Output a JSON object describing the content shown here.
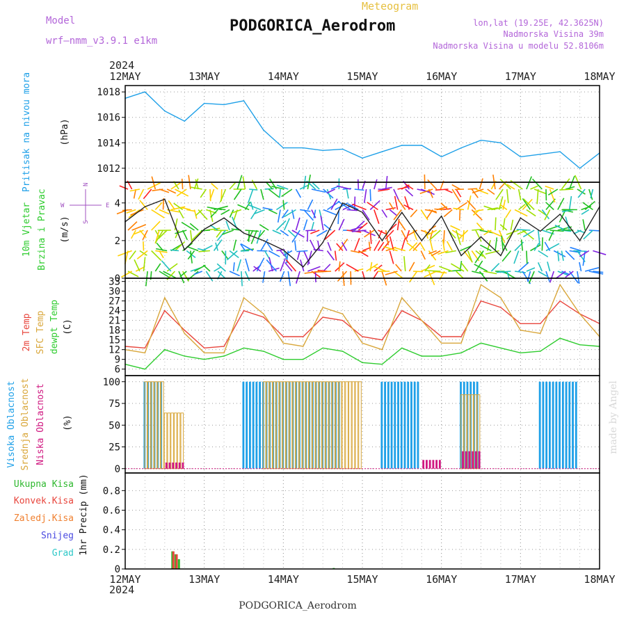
{
  "header": {
    "model_label": "Model",
    "model_name": "wrf–nmm_v3.9.1 e1km",
    "product": "Meteogram",
    "station": "PODGORICA_Aerodrom",
    "lonlat": "lon,lat (19.25E, 42.3625N)",
    "elevation": "Nadmorska Visina 39m",
    "model_elevation": "Nadmorska Visina u modelu 52.8106m",
    "credit": "made by Angel",
    "footer_station": "PODGORICA_Aerodrom"
  },
  "colors": {
    "pressure": "#1ea0e8",
    "temp2m": "#e8453c",
    "sfc_temp": "#d9a73b",
    "dewpoint": "#2ecc2e",
    "high_cloud": "#1ea0e8",
    "mid_cloud": "#d9a73b",
    "low_cloud": "#d01880",
    "total_precip": "#2eb82e",
    "conv_precip": "#e8453c",
    "frozen_precip": "#f08030",
    "snow": "#4a4ae0",
    "graupel": "#2ec8c8",
    "model_text": "#b366d9",
    "product_text": "#e6b800",
    "credit_text": "#d8d8d8"
  },
  "chart_data": [
    {
      "type": "line",
      "panel": "pressure",
      "x_type": "date",
      "x": [
        "2024-05-12 00:00",
        "2024-05-12 06:00",
        "2024-05-12 12:00",
        "2024-05-12 18:00",
        "2024-05-13 00:00",
        "2024-05-13 06:00",
        "2024-05-13 12:00",
        "2024-05-13 18:00",
        "2024-05-14 00:00",
        "2024-05-14 06:00",
        "2024-05-14 12:00",
        "2024-05-14 18:00",
        "2024-05-15 00:00",
        "2024-05-15 06:00",
        "2024-05-15 12:00",
        "2024-05-15 18:00",
        "2024-05-16 00:00",
        "2024-05-16 06:00",
        "2024-05-16 12:00",
        "2024-05-16 18:00",
        "2024-05-17 00:00",
        "2024-05-17 06:00",
        "2024-05-17 12:00",
        "2024-05-17 18:00",
        "2024-05-18 00:00"
      ],
      "series": [
        {
          "name": "Pritisak na nivou mora",
          "values": [
            1017.5,
            1018.0,
            1016.5,
            1015.7,
            1017.1,
            1017.0,
            1017.3,
            1015.0,
            1013.6,
            1013.6,
            1013.4,
            1013.5,
            1012.8,
            1013.3,
            1013.8,
            1013.8,
            1012.9,
            1013.6,
            1014.2,
            1014.0,
            1012.9,
            1013.1,
            1013.3,
            1012.0,
            1013.2
          ]
        }
      ],
      "xticks": [
        "12MAY",
        "13MAY",
        "14MAY",
        "15MAY",
        "16MAY",
        "17MAY",
        "18MAY"
      ],
      "year_label": "2024",
      "yticks": [
        1012,
        1014,
        1016,
        1018
      ],
      "ylim": [
        1010.9,
        1018.5
      ],
      "ylabel": "Pritisak na nivou mora",
      "yunit": "(hPa)",
      "grid": true
    },
    {
      "type": "line",
      "panel": "wind",
      "x_type": "date",
      "x": [
        "2024-05-12 00:00",
        "2024-05-12 06:00",
        "2024-05-12 12:00",
        "2024-05-12 18:00",
        "2024-05-13 00:00",
        "2024-05-13 06:00",
        "2024-05-13 12:00",
        "2024-05-13 18:00",
        "2024-05-14 00:00",
        "2024-05-14 06:00",
        "2024-05-14 12:00",
        "2024-05-14 18:00",
        "2024-05-15 00:00",
        "2024-05-15 06:00",
        "2024-05-15 12:00",
        "2024-05-15 18:00",
        "2024-05-16 00:00",
        "2024-05-16 06:00",
        "2024-05-16 12:00",
        "2024-05-16 18:00",
        "2024-05-17 00:00",
        "2024-05-17 06:00",
        "2024-05-17 12:00",
        "2024-05-17 18:00",
        "2024-05-18 00:00"
      ],
      "series": [
        {
          "name": "10m Vjetar Brzina",
          "values": [
            3.0,
            3.8,
            4.2,
            1.5,
            2.6,
            3.2,
            2.4,
            2.0,
            1.5,
            0.6,
            1.9,
            4.0,
            3.5,
            2.0,
            3.5,
            2.0,
            3.3,
            1.2,
            2.2,
            1.2,
            3.2,
            2.5,
            3.4,
            2.0,
            3.8
          ]
        }
      ],
      "xticks": [
        "12MAY",
        "13MAY",
        "14MAY",
        "15MAY",
        "16MAY",
        "17MAY",
        "18MAY"
      ],
      "yticks": [
        0,
        2,
        4
      ],
      "ylim": [
        0,
        5.1
      ],
      "ylabel": "10m Vjetar Brzina i Pravac",
      "yunit": "(m/s)",
      "compass": {
        "n": "N",
        "s": "S",
        "e": "E",
        "w": "W"
      },
      "grid": true
    },
    {
      "type": "line",
      "panel": "temperature",
      "x_type": "date",
      "x": [
        "2024-05-12 00:00",
        "2024-05-12 06:00",
        "2024-05-12 12:00",
        "2024-05-12 18:00",
        "2024-05-13 00:00",
        "2024-05-13 06:00",
        "2024-05-13 12:00",
        "2024-05-13 18:00",
        "2024-05-14 00:00",
        "2024-05-14 06:00",
        "2024-05-14 12:00",
        "2024-05-14 18:00",
        "2024-05-15 00:00",
        "2024-05-15 06:00",
        "2024-05-15 12:00",
        "2024-05-15 18:00",
        "2024-05-16 00:00",
        "2024-05-16 06:00",
        "2024-05-16 12:00",
        "2024-05-16 18:00",
        "2024-05-17 00:00",
        "2024-05-17 06:00",
        "2024-05-17 12:00",
        "2024-05-17 18:00",
        "2024-05-18 00:00"
      ],
      "series": [
        {
          "name": "2m Temp",
          "values": [
            13.0,
            12.5,
            24.0,
            18.0,
            12.5,
            13.0,
            24.0,
            22.0,
            16.0,
            16.0,
            22.0,
            21.0,
            16.0,
            15.0,
            24.0,
            21.0,
            16.0,
            16.0,
            27.0,
            25.0,
            20.0,
            20.0,
            27.0,
            23.0,
            20.0
          ]
        },
        {
          "name": "SFC Temp",
          "values": [
            12.0,
            11.0,
            28.0,
            17.0,
            11.0,
            11.0,
            28.0,
            23.0,
            14.0,
            13.0,
            25.0,
            23.0,
            14.0,
            12.0,
            28.0,
            21.0,
            14.0,
            14.0,
            32.0,
            28.0,
            18.0,
            17.0,
            32.0,
            23.0,
            16.0
          ]
        },
        {
          "name": "dewpt Temp",
          "values": [
            7.5,
            6.0,
            12.0,
            10.0,
            9.0,
            10.0,
            12.5,
            11.5,
            9.0,
            9.0,
            12.5,
            11.5,
            8.0,
            7.5,
            12.5,
            10.0,
            10.0,
            11.0,
            14.0,
            12.5,
            11.0,
            11.5,
            15.5,
            13.5,
            13.0
          ]
        }
      ],
      "xticks": [
        "12MAY",
        "13MAY",
        "14MAY",
        "15MAY",
        "16MAY",
        "17MAY",
        "18MAY"
      ],
      "yticks": [
        6,
        9,
        12,
        15,
        18,
        21,
        24,
        27,
        30,
        33
      ],
      "ylim": [
        4,
        34
      ],
      "ylabel": "2m Temp / SFC Temp / dewpt Temp",
      "yunit": "(C)",
      "grid": true
    },
    {
      "type": "bar",
      "panel": "cloud",
      "x_type": "date",
      "x": [
        "2024-05-12 00:00",
        "2024-05-12 06:00",
        "2024-05-12 12:00",
        "2024-05-12 18:00",
        "2024-05-13 00:00",
        "2024-05-13 06:00",
        "2024-05-13 12:00",
        "2024-05-13 18:00",
        "2024-05-14 00:00",
        "2024-05-14 06:00",
        "2024-05-14 12:00",
        "2024-05-14 18:00",
        "2024-05-15 00:00",
        "2024-05-15 06:00",
        "2024-05-15 12:00",
        "2024-05-15 18:00",
        "2024-05-16 00:00",
        "2024-05-16 06:00",
        "2024-05-16 12:00",
        "2024-05-16 18:00",
        "2024-05-17 00:00",
        "2024-05-17 06:00",
        "2024-05-17 12:00",
        "2024-05-17 18:00",
        "2024-05-18 00:00"
      ],
      "series": [
        {
          "name": "Visoka Oblacnost",
          "values": [
            0,
            100,
            0,
            0,
            0,
            0,
            100,
            100,
            100,
            100,
            100,
            0,
            0,
            100,
            100,
            0,
            0,
            100,
            0,
            0,
            0,
            100,
            100,
            0,
            0
          ]
        },
        {
          "name": "Srednja Oblacnost",
          "values": [
            0,
            100,
            64,
            0,
            0,
            0,
            0,
            100,
            100,
            100,
            100,
            100,
            0,
            0,
            0,
            0,
            0,
            85,
            0,
            0,
            0,
            0,
            0,
            0,
            0
          ]
        },
        {
          "name": "Niska Oblacnost",
          "values": [
            0,
            0,
            7,
            0,
            0,
            0,
            0,
            0,
            0,
            0,
            0,
            0,
            0,
            0,
            0,
            10,
            0,
            20,
            0,
            0,
            0,
            0,
            0,
            0,
            0
          ]
        }
      ],
      "xticks": [
        "12MAY",
        "13MAY",
        "14MAY",
        "15MAY",
        "16MAY",
        "17MAY",
        "18MAY"
      ],
      "yticks": [
        0,
        25,
        50,
        75,
        100
      ],
      "ylim": [
        -5,
        107
      ],
      "ylabel": "Visoka / Srednja / Niska Oblacnost",
      "yunit": "(%)",
      "grid": true
    },
    {
      "type": "bar",
      "panel": "precipitation",
      "x_type": "date",
      "x": [
        "2024-05-12 14:00",
        "2024-05-12 15:00",
        "2024-05-12 16:00",
        "2024-05-14 15:00"
      ],
      "series": [
        {
          "name": "Ukupna Kisa",
          "values": [
            0.18,
            0.15,
            0.1,
            0.01
          ]
        },
        {
          "name": "Konvek.Kisa",
          "values": [
            0.18,
            0.15,
            0.0,
            0.0
          ]
        },
        {
          "name": "Zaledj.Kisa",
          "values": [
            0,
            0,
            0,
            0
          ]
        },
        {
          "name": "Snijeg",
          "values": [
            0,
            0,
            0,
            0
          ]
        },
        {
          "name": "Grad",
          "values": [
            0,
            0,
            0,
            0
          ]
        }
      ],
      "xticks": [
        "12MAY",
        "13MAY",
        "14MAY",
        "15MAY",
        "16MAY",
        "17MAY",
        "18MAY"
      ],
      "year_label": "2024",
      "yticks": [
        0,
        0.2,
        0.4,
        0.6,
        0.8
      ],
      "ylim": [
        0,
        0.98
      ],
      "ylabel": "1hr Precip",
      "yunit": "(mm)",
      "grid": true
    }
  ]
}
